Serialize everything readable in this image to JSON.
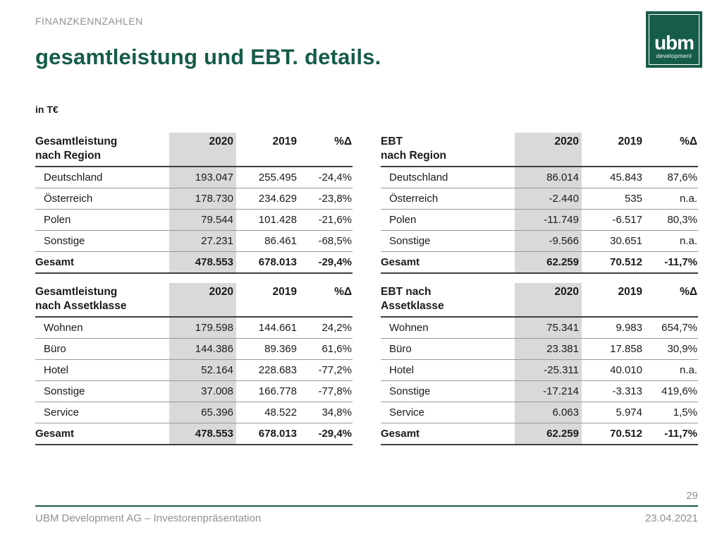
{
  "header": {
    "eyebrow": "FINANZKENNZAHLEN",
    "title": "gesamtleistung und EBT. details.",
    "unit_label": "in T€"
  },
  "logo": {
    "wordmark": "ubm",
    "subtext": "development"
  },
  "colors": {
    "brand_green": "#165C4A",
    "highlight_gray": "#D9D9D9",
    "text_dark": "#1A1A1A",
    "muted_gray": "#919191",
    "line_dark": "#3F3F3F",
    "line_light": "#9A9A9A"
  },
  "tables": [
    {
      "title": [
        "Gesamtleistung",
        "nach Region"
      ],
      "columns": [
        "2020",
        "2019",
        "%Δ"
      ],
      "rows": [
        {
          "label": "Deutschland",
          "values": [
            "193.047",
            "255.495",
            "-24,4%"
          ]
        },
        {
          "label": "Österreich",
          "values": [
            "178.730",
            "234.629",
            "-23,8%"
          ]
        },
        {
          "label": "Polen",
          "values": [
            "79.544",
            "101.428",
            "-21,6%"
          ]
        },
        {
          "label": "Sonstige",
          "values": [
            "27.231",
            "86.461",
            "-68,5%"
          ]
        }
      ],
      "total": {
        "label": "Gesamt",
        "values": [
          "478.553",
          "678.013",
          "-29,4%"
        ]
      }
    },
    {
      "title": [
        "EBT",
        "nach Region"
      ],
      "columns": [
        "2020",
        "2019",
        "%Δ"
      ],
      "rows": [
        {
          "label": "Deutschland",
          "values": [
            "86.014",
            "45.843",
            "87,6%"
          ]
        },
        {
          "label": "Österreich",
          "values": [
            "-2.440",
            "535",
            "n.a."
          ]
        },
        {
          "label": "Polen",
          "values": [
            "-11.749",
            "-6.517",
            "80,3%"
          ]
        },
        {
          "label": "Sonstige",
          "values": [
            "-9.566",
            "30.651",
            "n.a."
          ]
        }
      ],
      "total": {
        "label": "Gesamt",
        "values": [
          "62.259",
          "70.512",
          "-11,7%"
        ]
      }
    },
    {
      "title": [
        "Gesamtleistung",
        "nach Assetklasse"
      ],
      "columns": [
        "2020",
        "2019",
        "%Δ"
      ],
      "rows": [
        {
          "label": "Wohnen",
          "values": [
            "179.598",
            "144.661",
            "24,2%"
          ]
        },
        {
          "label": "Büro",
          "values": [
            "144.386",
            "89.369",
            "61,6%"
          ]
        },
        {
          "label": "Hotel",
          "values": [
            "52.164",
            "228.683",
            "-77,2%"
          ]
        },
        {
          "label": "Sonstige",
          "values": [
            "37.008",
            "166.778",
            "-77,8%"
          ]
        },
        {
          "label": "Service",
          "values": [
            "65.396",
            "48.522",
            "34,8%"
          ]
        }
      ],
      "total": {
        "label": "Gesamt",
        "values": [
          "478.553",
          "678.013",
          "-29,4%"
        ]
      }
    },
    {
      "title": [
        "EBT nach",
        "Assetklasse"
      ],
      "columns": [
        "2020",
        "2019",
        "%Δ"
      ],
      "rows": [
        {
          "label": "Wohnen",
          "values": [
            "75.341",
            "9.983",
            "654,7%"
          ]
        },
        {
          "label": "Büro",
          "values": [
            "23.381",
            "17.858",
            "30,9%"
          ]
        },
        {
          "label": "Hotel",
          "values": [
            "-25.311",
            "40.010",
            "n.a."
          ]
        },
        {
          "label": "Sonstige",
          "values": [
            "-17.214",
            "-3.313",
            "419,6%"
          ]
        },
        {
          "label": "Service",
          "values": [
            "6.063",
            "5.974",
            "1,5%"
          ]
        }
      ],
      "total": {
        "label": "Gesamt",
        "values": [
          "62.259",
          "70.512",
          "-11,7%"
        ]
      }
    }
  ],
  "footer": {
    "page_number": "29",
    "left": "UBM Development AG – Investorenpräsentation",
    "right": "23.04.2021"
  }
}
